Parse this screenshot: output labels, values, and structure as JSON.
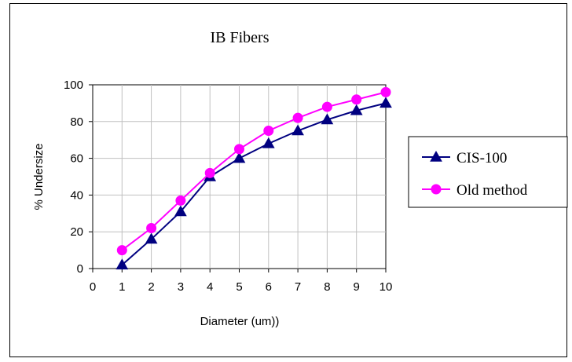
{
  "chart_data": {
    "type": "line",
    "title": "IB Fibers",
    "xlabel": "Diameter (um))",
    "ylabel": "% Undersize",
    "xlim": [
      0,
      10
    ],
    "ylim": [
      0,
      100
    ],
    "x_ticks": [
      0,
      1,
      2,
      3,
      4,
      5,
      6,
      7,
      8,
      9,
      10
    ],
    "y_ticks": [
      0,
      20,
      40,
      60,
      80,
      100
    ],
    "grid": true,
    "legend_position": "right",
    "series": [
      {
        "name": "CIS-100",
        "marker": "triangle",
        "color": "#000080",
        "x": [
          1,
          2,
          3,
          4,
          5,
          6,
          7,
          8,
          9,
          10
        ],
        "y": [
          2,
          16,
          31,
          50,
          60,
          68,
          75,
          81,
          86,
          90
        ]
      },
      {
        "name": "Old method",
        "marker": "circle",
        "color": "#ff00ff",
        "x": [
          1,
          2,
          3,
          4,
          5,
          6,
          7,
          8,
          9,
          10
        ],
        "y": [
          10,
          22,
          37,
          52,
          65,
          75,
          82,
          88,
          92,
          96
        ]
      }
    ]
  }
}
